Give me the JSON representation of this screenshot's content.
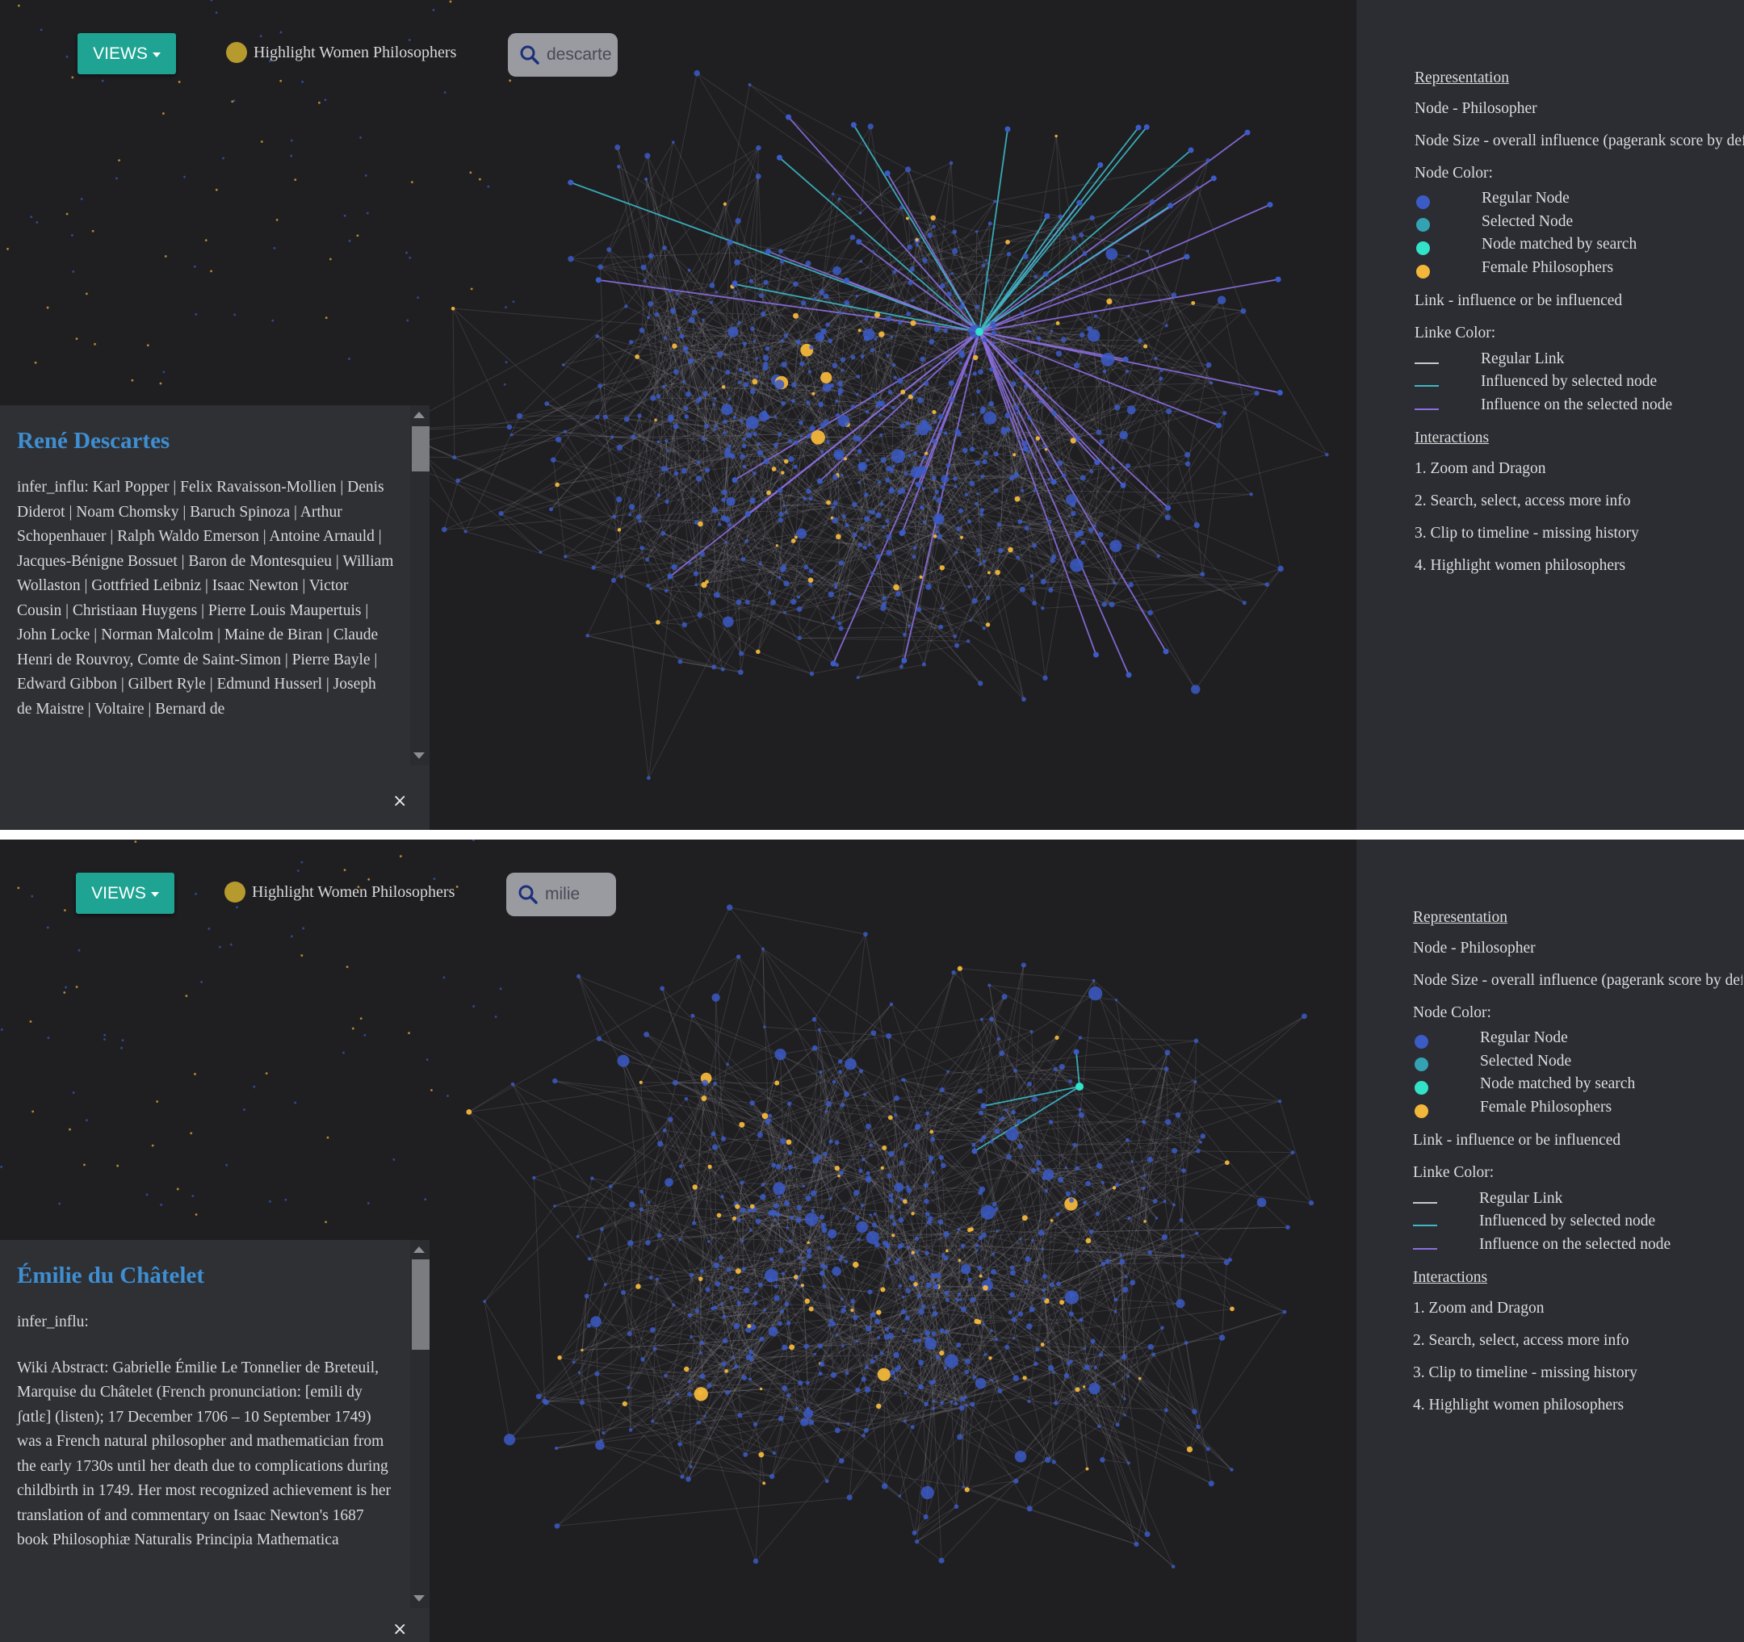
{
  "colors": {
    "background": "#1f1f22",
    "legend_background": "#2c2d32",
    "regular_node": "#3b5bc6",
    "selected_node": "#33a3b4",
    "search_match_node": "#32e2c9",
    "female_node": "#f2b63a",
    "regular_link": "#8c8c94",
    "influenced_by_selected": "#3cb9c7",
    "influence_on_selected": "#8c6ee0",
    "title_blue": "#3e8ed2",
    "views_button": "#1fa493"
  },
  "toolbar": {
    "views_label": "VIEWS",
    "highlight_label": "Highlight Women Philosophers"
  },
  "views": [
    {
      "search_value": "descarte",
      "info": {
        "title": "René Descartes",
        "paragraphs": [
          "infer_influ: Karl Popper | Felix Ravaisson-Mollien | Denis Diderot | Noam Chomsky | Baruch Spinoza | Arthur Schopenhauer | Ralph Waldo Emerson | Antoine Arnauld | Jacques-Bénigne Bossuet | Baron de Montesquieu | William Wollaston | Gottfried Leibniz | Isaac Newton | Victor Cousin | Christiaan Huygens | Pierre Louis Maupertuis | John Locke | Norman Malcolm | Maine de Biran | Claude Henri de Rouvroy, Comte de Saint-Simon | Pierre Bayle | Edward Gibbon | Gilbert Ryle | Edmund Husserl | Joseph de Maistre | Voltaire | Bernard de"
        ],
        "close": "×"
      }
    },
    {
      "search_value": "milie",
      "info": {
        "title": "Émilie du Châtelet",
        "paragraphs": [
          "infer_influ:",
          "Wiki Abstract: Gabrielle Émilie Le Tonnelier de Breteuil, Marquise du Châtelet (French pronunciation: [emili dy ʃɑtlɛ] (listen); 17 December 1706 – 10 September 1749) was a French natural philosopher and mathematician from the early 1730s until her death due to complications during childbirth in 1749. Her most recognized achievement is her translation of and commentary on Isaac Newton's 1687 book Philosophiæ Naturalis Principia Mathematica"
        ],
        "close": "×"
      }
    }
  ],
  "legend": {
    "representation_heading": "Representation",
    "node": "Node - Philosopher",
    "node_size": "Node Size - overall influence (pagerank score by default)",
    "node_color_heading": "Node Color:",
    "node_colors": [
      {
        "label": "Regular Node",
        "color": "#3b5bc6"
      },
      {
        "label": "Selected Node",
        "color": "#33a3b4"
      },
      {
        "label": "Node matched by search",
        "color": "#32e2c9"
      },
      {
        "label": "Female Philosophers",
        "color": "#f2b63a"
      }
    ],
    "link": "Link - influence or be influenced",
    "link_color_heading": "Linke Color:",
    "link_colors": [
      {
        "label": "Regular Link",
        "color": "#c8c8cc"
      },
      {
        "label": "Influenced by selected node",
        "color": "#3cb9c7"
      },
      {
        "label": "Influence on the selected node",
        "color": "#8c6ee0"
      }
    ],
    "interactions_heading": "Interactions",
    "interactions": [
      "1. Zoom and Dragon",
      "2. Search, select, access more info",
      "3. Clip to timeline - missing history",
      "4. Highlight women philosophers"
    ]
  }
}
